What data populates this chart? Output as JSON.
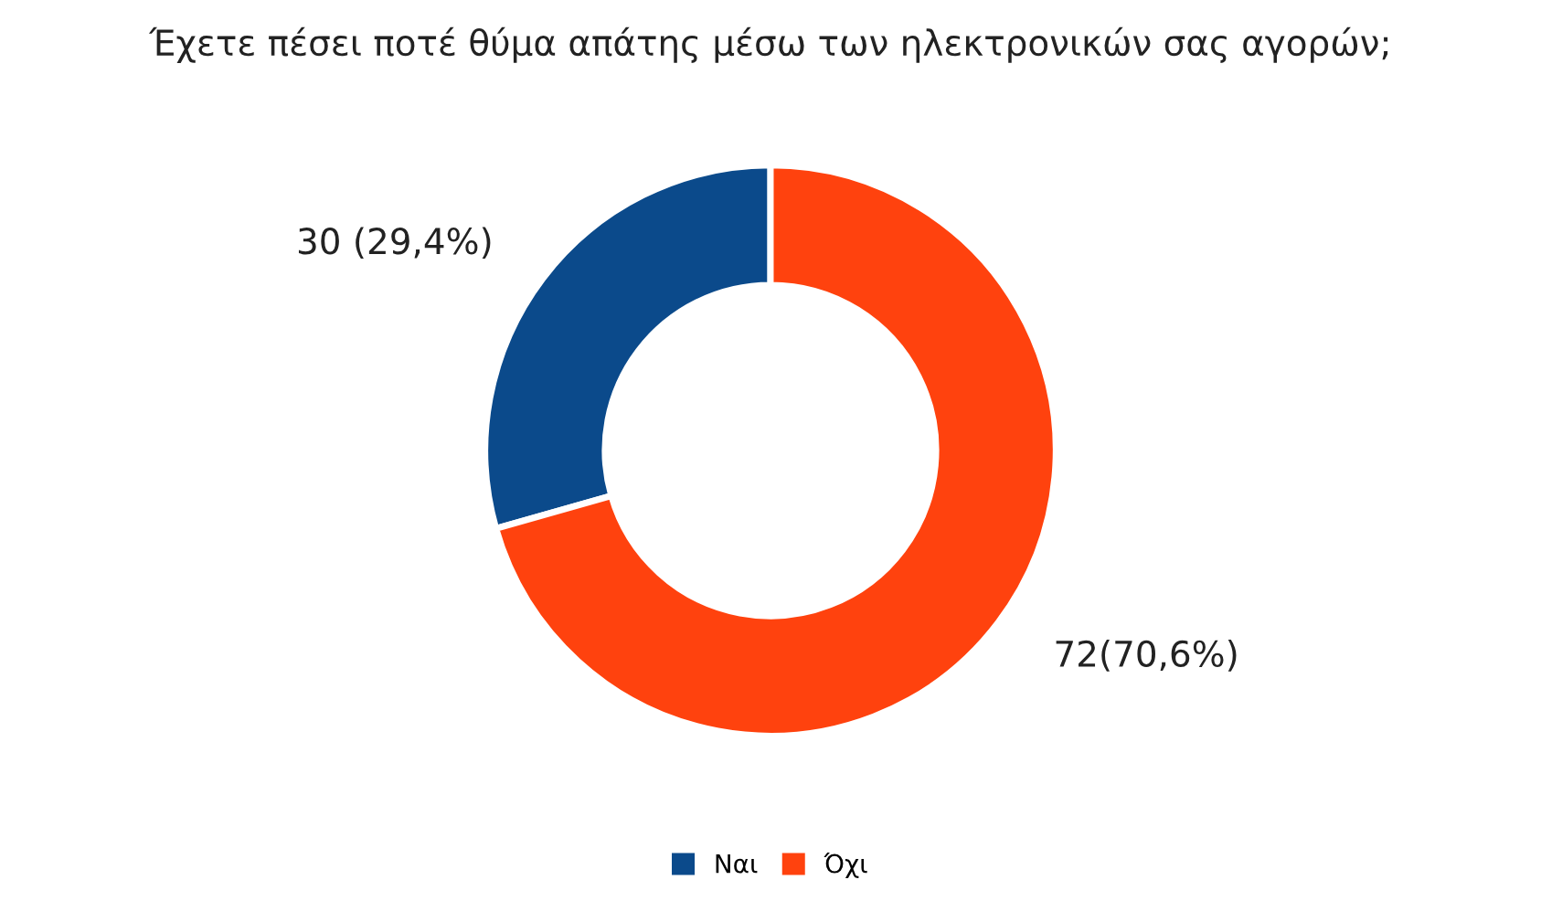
{
  "chart_data": {
    "type": "donut",
    "title": "Έχετε πέσει ποτέ θύμα απάτης μέσω των ηλεκτρονικών σας αγορών;",
    "categories": [
      "Ναι",
      "Όχι"
    ],
    "values": [
      30,
      72
    ],
    "value_labels": [
      "30 (29,4%)",
      "72(70,6%)"
    ],
    "colors": [
      "#0b4a8b",
      "#ff420e"
    ],
    "legend": "bottom"
  }
}
